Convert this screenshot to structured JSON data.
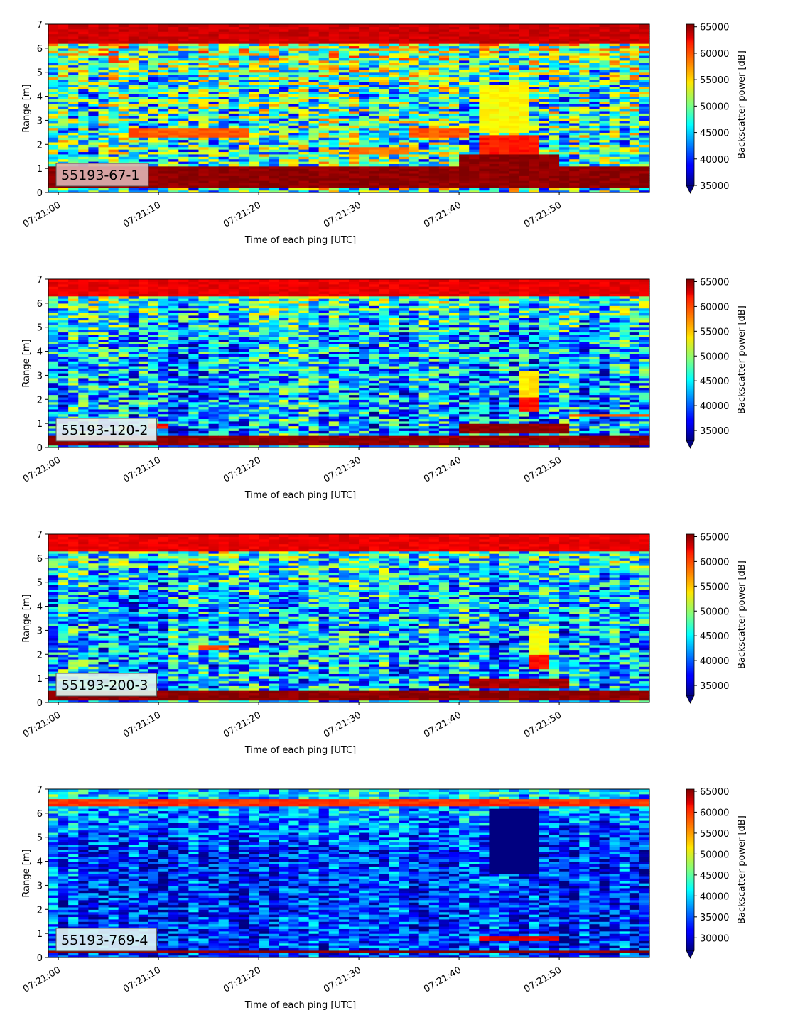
{
  "chart_data": [
    {
      "type": "heatmap",
      "label": "55193-67-1",
      "label_box_color": "#dcb0b0",
      "xlabel": "Time of each ping [UTC]",
      "ylabel": "Range [m]",
      "xticks": [
        "07:21:00",
        "07:21:10",
        "07:21:20",
        "07:21:30",
        "07:21:40",
        "07:21:50"
      ],
      "xlim_seconds": [
        0,
        60
      ],
      "ylim": [
        0,
        7
      ],
      "yticks": [
        0,
        1,
        2,
        3,
        4,
        5,
        6,
        7
      ],
      "colorbar_label": "Backscatter power [dB]",
      "clim": [
        35000,
        65500
      ],
      "colorbar_ticks": [
        35000,
        40000,
        45000,
        50000,
        55000,
        60000,
        65000
      ],
      "colormap": "jet",
      "colorbar_extend": "min",
      "profile": "strong",
      "features": [
        {
          "t0": 0,
          "t1": 60,
          "r0": 0.2,
          "r1": 1.1,
          "value": 66000
        },
        {
          "t0": 0,
          "t1": 60,
          "r0": 6.2,
          "r1": 7.0,
          "value": 64000
        },
        {
          "t0": 8,
          "t1": 20,
          "r0": 2.3,
          "r1": 2.7,
          "value": 60000
        },
        {
          "t0": 30,
          "t1": 36,
          "r0": 1.6,
          "r1": 1.9,
          "value": 59000
        },
        {
          "t0": 36,
          "t1": 42,
          "r0": 2.3,
          "r1": 2.7,
          "value": 60000
        },
        {
          "t0": 41,
          "t1": 51,
          "r0": 1.1,
          "r1": 1.6,
          "value": 66000
        },
        {
          "t0": 43,
          "t1": 49,
          "r0": 1.6,
          "r1": 2.4,
          "value": 62000
        },
        {
          "t0": 43,
          "t1": 48,
          "r0": 2.5,
          "r1": 4.5,
          "value": 55000
        }
      ]
    },
    {
      "type": "heatmap",
      "label": "55193-120-2",
      "label_box_color": "#e8f0f0",
      "xlabel": "Time of each ping [UTC]",
      "ylabel": "Range [m]",
      "xticks": [
        "07:21:00",
        "07:21:10",
        "07:21:20",
        "07:21:30",
        "07:21:40",
        "07:21:50"
      ],
      "xlim_seconds": [
        0,
        60
      ],
      "ylim": [
        0,
        7
      ],
      "yticks": [
        0,
        1,
        2,
        3,
        4,
        5,
        6,
        7
      ],
      "colorbar_label": "Backscatter power [dB]",
      "clim": [
        33000,
        65500
      ],
      "colorbar_ticks": [
        35000,
        40000,
        45000,
        50000,
        55000,
        60000,
        65000
      ],
      "colormap": "jet",
      "colorbar_extend": "min",
      "profile": "medium",
      "features": [
        {
          "t0": 0,
          "t1": 60,
          "r0": 0.1,
          "r1": 0.5,
          "value": 66000
        },
        {
          "t0": 0,
          "t1": 60,
          "r0": 6.3,
          "r1": 7.0,
          "value": 63000
        },
        {
          "t0": 41,
          "t1": 52,
          "r0": 0.65,
          "r1": 1.0,
          "value": 66000
        },
        {
          "t0": 47,
          "t1": 49,
          "r0": 1.5,
          "r1": 2.1,
          "value": 62000
        },
        {
          "t0": 47,
          "t1": 49,
          "r0": 2.1,
          "r1": 3.2,
          "value": 55000
        },
        {
          "t0": 10,
          "t1": 12,
          "r0": 0.85,
          "r1": 1.05,
          "value": 62000
        },
        {
          "t0": 52,
          "t1": 60,
          "r0": 1.3,
          "r1": 1.45,
          "value": 60000
        }
      ]
    },
    {
      "type": "heatmap",
      "label": "55193-200-3",
      "label_box_color": "#e0f4ec",
      "xlabel": "Time of each ping [UTC]",
      "ylabel": "Range [m]",
      "xticks": [
        "07:21:00",
        "07:21:10",
        "07:21:20",
        "07:21:30",
        "07:21:40",
        "07:21:50"
      ],
      "xlim_seconds": [
        0,
        60
      ],
      "ylim": [
        0,
        7
      ],
      "yticks": [
        0,
        1,
        2,
        3,
        4,
        5,
        6,
        7
      ],
      "colorbar_label": "Backscatter power [dB]",
      "clim": [
        33000,
        65500
      ],
      "colorbar_ticks": [
        35000,
        40000,
        45000,
        50000,
        55000,
        60000,
        65000
      ],
      "colormap": "jet",
      "colorbar_extend": "min",
      "profile": "medium",
      "features": [
        {
          "t0": 0,
          "t1": 60,
          "r0": 0.1,
          "r1": 0.45,
          "value": 66000
        },
        {
          "t0": 0,
          "t1": 60,
          "r0": 6.3,
          "r1": 7.0,
          "value": 63000
        },
        {
          "t0": 42,
          "t1": 52,
          "r0": 0.65,
          "r1": 1.0,
          "value": 65000
        },
        {
          "t0": 48,
          "t1": 50,
          "r0": 1.4,
          "r1": 2.0,
          "value": 62000
        },
        {
          "t0": 48,
          "t1": 50,
          "r0": 2.0,
          "r1": 3.2,
          "value": 54000
        },
        {
          "t0": 15,
          "t1": 18,
          "r0": 2.2,
          "r1": 2.35,
          "value": 60000
        }
      ]
    },
    {
      "type": "heatmap",
      "label": "55193-769-4",
      "label_box_color": "#dff4f4",
      "xlabel": "Time of each ping [UTC]",
      "ylabel": "Range [m]",
      "xticks": [
        "07:21:00",
        "07:21:10",
        "07:21:20",
        "07:21:30",
        "07:21:40",
        "07:21:50"
      ],
      "xlim_seconds": [
        0,
        60
      ],
      "ylim": [
        0,
        7
      ],
      "yticks": [
        0,
        1,
        2,
        3,
        4,
        5,
        6,
        7
      ],
      "colorbar_label": "Backscatter power [dB]",
      "clim": [
        27000,
        65500
      ],
      "colorbar_ticks": [
        30000,
        35000,
        40000,
        45000,
        50000,
        55000,
        60000,
        65000
      ],
      "colormap": "jet",
      "colorbar_extend": "min",
      "profile": "weak",
      "features": [
        {
          "t0": 0,
          "t1": 60,
          "r0": 0.2,
          "r1": 0.35,
          "value": 66000
        },
        {
          "t0": 0,
          "t1": 60,
          "r0": 6.35,
          "r1": 6.6,
          "value": 60000
        },
        {
          "t0": 43,
          "t1": 51,
          "r0": 0.7,
          "r1": 0.95,
          "value": 63000
        },
        {
          "t0": 44,
          "t1": 49,
          "r0": 3.5,
          "r1": 6.2,
          "value": 27000
        }
      ]
    }
  ]
}
